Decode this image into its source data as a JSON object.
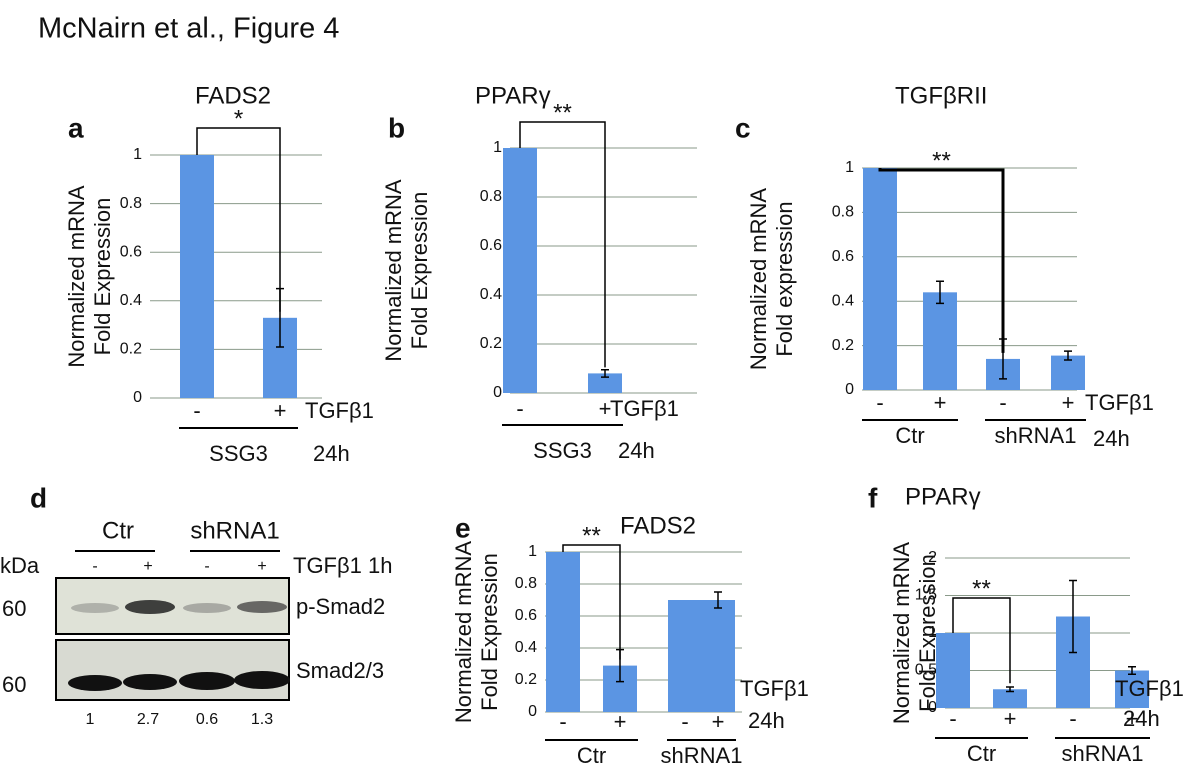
{
  "title": "McNairn et al., Figure 4",
  "chart_data": [
    {
      "type": "bar",
      "panel": "a",
      "title": "FADS2",
      "ylabel": [
        "Normalized mRNA",
        "Fold Expression"
      ],
      "categories": [
        "-",
        "+"
      ],
      "values": [
        1,
        0.33
      ],
      "errors": [
        null,
        0.12
      ],
      "groups": [
        "SSG3"
      ],
      "treatment": [
        "TGFβ1",
        "24h"
      ],
      "significance": "*",
      "color": "#5b95e3",
      "ylim": [
        0,
        1
      ],
      "yticks": [
        0,
        0.2,
        0.4,
        0.6,
        0.8,
        1
      ],
      "grid": true
    },
    {
      "type": "bar",
      "panel": "b",
      "title": "PPARγ",
      "ylabel": [
        "Normalized mRNA",
        "Fold Expression"
      ],
      "categories": [
        "-",
        "+"
      ],
      "values": [
        1,
        0.08
      ],
      "errors": [
        null,
        0.015
      ],
      "groups": [
        "SSG3"
      ],
      "treatment": [
        "TGFβ1",
        "24h"
      ],
      "significance": "**",
      "color": "#5b95e3",
      "ylim": [
        0,
        1
      ],
      "yticks": [
        0,
        0.2,
        0.4,
        0.6,
        0.8,
        1
      ],
      "grid": true
    },
    {
      "type": "bar",
      "panel": "c",
      "title": "TGFβRII",
      "ylabel": [
        "Normalized mRNA",
        "Fold expression"
      ],
      "categories": [
        "-",
        "+",
        "-",
        "+"
      ],
      "values": [
        1,
        0.44,
        0.14,
        0.155
      ],
      "errors": [
        null,
        0.05,
        0.09,
        0.02
      ],
      "groups": [
        "Ctr",
        "shRNA1"
      ],
      "treatment": [
        "TGFβ1",
        "24h"
      ],
      "significance": "**",
      "color": "#5b95e3",
      "ylim": [
        0,
        1
      ],
      "yticks": [
        0,
        0.2,
        0.4,
        0.6,
        0.8,
        1
      ],
      "grid": true
    },
    {
      "type": "bar",
      "panel": "e",
      "title": "FADS2",
      "ylabel": [
        "Normalized mRNA",
        "Fold Expression"
      ],
      "categories": [
        "-",
        "+",
        "-",
        "+"
      ],
      "values": [
        1,
        0.29,
        0.7,
        0.7
      ],
      "errors": [
        null,
        0.1,
        null,
        0.05
      ],
      "groups": [
        "Ctr",
        "shRNA1"
      ],
      "treatment": [
        "TGFβ1",
        "24h"
      ],
      "significance": "**",
      "color": "#5b95e3",
      "ylim": [
        0,
        1
      ],
      "yticks": [
        0,
        0.2,
        0.4,
        0.6,
        0.8,
        1
      ],
      "grid": true
    },
    {
      "type": "bar",
      "panel": "f",
      "title": "PPARγ",
      "ylabel": [
        "Normalized mRNA",
        "Fold Expression"
      ],
      "categories": [
        "-",
        "+",
        "-",
        "+"
      ],
      "values": [
        1,
        0.25,
        1.22,
        0.5
      ],
      "errors": [
        null,
        0.03,
        0.48,
        0.05
      ],
      "groups": [
        "Ctr",
        "shRNA1"
      ],
      "treatment": [
        "TGFβ1",
        "24h"
      ],
      "significance": "**",
      "color": "#5b95e3",
      "ylim": [
        0,
        2
      ],
      "yticks": [
        0,
        0.5,
        1,
        1.5,
        2
      ],
      "grid": true
    }
  ],
  "blot": {
    "panel": "d",
    "groups": [
      "Ctr",
      "shRNA1"
    ],
    "lanes": [
      "-",
      "+",
      "-",
      "+"
    ],
    "treatment": "TGFβ1 1h",
    "unit": "kDa",
    "rows": [
      {
        "marker": 60,
        "label": "p-Smad2"
      },
      {
        "marker": 60,
        "label": "Smad2/3"
      }
    ],
    "quantification": [
      1,
      2.7,
      0.6,
      1.3
    ]
  }
}
